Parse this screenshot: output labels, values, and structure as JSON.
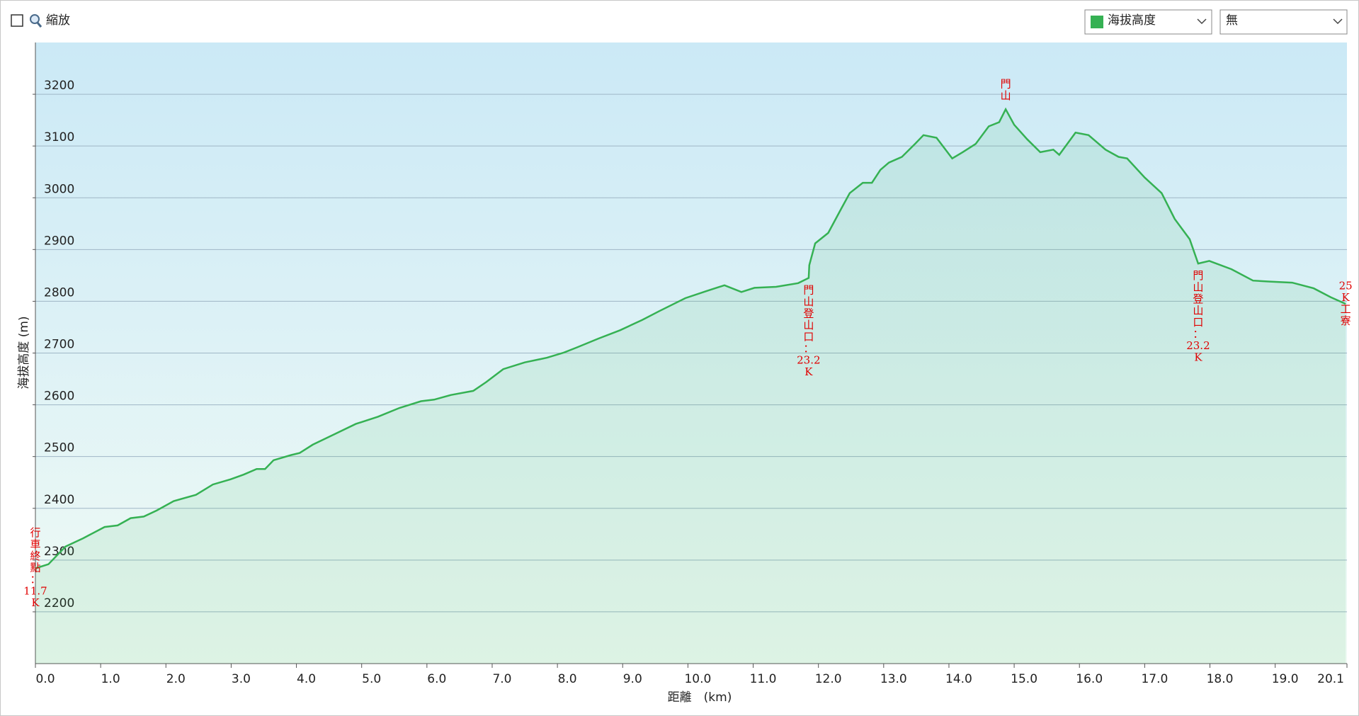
{
  "toolbar": {
    "zoom_label": "縮放",
    "dropdown_2": "無"
  },
  "chart_data": {
    "type": "line",
    "xlabel": "距離　(km)",
    "ylabel": "海拔高度 (m)",
    "x": [
      0,
      0.2,
      0.46,
      0.73,
      1.06,
      1.26,
      1.46,
      1.66,
      1.86,
      2.12,
      2.46,
      2.72,
      2.99,
      3.19,
      3.39,
      3.52,
      3.65,
      3.92,
      4.05,
      4.25,
      4.58,
      4.91,
      5.25,
      5.58,
      5.91,
      6.11,
      6.37,
      6.71,
      6.91,
      7.17,
      7.5,
      7.84,
      8.1,
      8.3,
      8.63,
      8.96,
      9.3,
      9.56,
      9.96,
      10.29,
      10.56,
      10.82,
      11.02,
      11.35,
      11.69,
      11.85,
      11.86,
      11.95,
      12.15,
      12.35,
      12.48,
      12.68,
      12.82,
      12.95,
      13.08,
      13.28,
      13.48,
      13.61,
      13.81,
      14.05,
      14.21,
      14.41,
      14.61,
      14.77,
      14.87,
      15.0,
      15.2,
      15.4,
      15.6,
      15.69,
      15.94,
      16.14,
      16.4,
      16.6,
      16.73,
      17.0,
      17.26,
      17.46,
      17.69,
      17.82,
      17.99,
      18.33,
      18.66,
      18.92,
      19.26,
      19.59,
      19.85,
      20.08
    ],
    "series": [
      {
        "name": "海拔高度",
        "color": "#35b153",
        "values": [
          2284,
          2292,
          2326,
          2342,
          2364,
          2367,
          2381,
          2384,
          2396,
          2414,
          2426,
          2446,
          2456,
          2465,
          2476,
          2476,
          2493,
          2503,
          2507,
          2523,
          2543,
          2563,
          2577,
          2594,
          2607,
          2610,
          2619,
          2627,
          2644,
          2669,
          2682,
          2691,
          2701,
          2711,
          2728,
          2744,
          2764,
          2781,
          2806,
          2820,
          2831,
          2818,
          2826,
          2828,
          2835,
          2845,
          2870,
          2912,
          2932,
          2979,
          3009,
          3029,
          3029,
          3054,
          3068,
          3079,
          3104,
          3121,
          3116,
          3076,
          3088,
          3104,
          3138,
          3146,
          3171,
          3141,
          3113,
          3088,
          3093,
          3083,
          3126,
          3121,
          3093,
          3079,
          3076,
          3039,
          3009,
          2959,
          2920,
          2873,
          2878,
          2862,
          2840,
          2838,
          2836,
          2825,
          2808,
          2795
        ]
      }
    ],
    "xlim": [
      0,
      20.1
    ],
    "ylim": [
      2100,
      3300
    ],
    "xticks": [
      {
        "value": 0,
        "label": "0.0"
      },
      {
        "value": 1,
        "label": "1.0"
      },
      {
        "value": 2,
        "label": "2.0"
      },
      {
        "value": 3,
        "label": "3.0"
      },
      {
        "value": 4,
        "label": "4.0"
      },
      {
        "value": 5,
        "label": "5.0"
      },
      {
        "value": 6,
        "label": "6.0"
      },
      {
        "value": 7,
        "label": "7.0"
      },
      {
        "value": 8,
        "label": "8.0"
      },
      {
        "value": 9,
        "label": "9.0"
      },
      {
        "value": 10,
        "label": "10.0"
      },
      {
        "value": 11,
        "label": "11.0"
      },
      {
        "value": 12,
        "label": "12.0"
      },
      {
        "value": 13,
        "label": "13.0"
      },
      {
        "value": 14,
        "label": "14.0"
      },
      {
        "value": 15,
        "label": "15.0"
      },
      {
        "value": 16,
        "label": "16.0"
      },
      {
        "value": 17,
        "label": "17.0"
      },
      {
        "value": 18,
        "label": "18.0"
      },
      {
        "value": 19,
        "label": "19.0"
      },
      {
        "value": 20.1,
        "label": "20.1"
      }
    ],
    "yticks": [
      2200,
      2300,
      2400,
      2500,
      2600,
      2700,
      2800,
      2900,
      3000,
      3100,
      3200
    ],
    "grid": true,
    "annotations": [
      {
        "text": "行車終點：11.7K",
        "x": 0,
        "position": "middle"
      },
      {
        "text": "門山登山口：23.2K",
        "x": 11.85,
        "position": "below"
      },
      {
        "text": "門山",
        "x": 14.87,
        "position": "above"
      },
      {
        "text": "門山登山口：23.2K",
        "x": 17.82,
        "position": "below"
      },
      {
        "text": "25K工寮",
        "x": 20.08,
        "position": "middle"
      }
    ]
  }
}
